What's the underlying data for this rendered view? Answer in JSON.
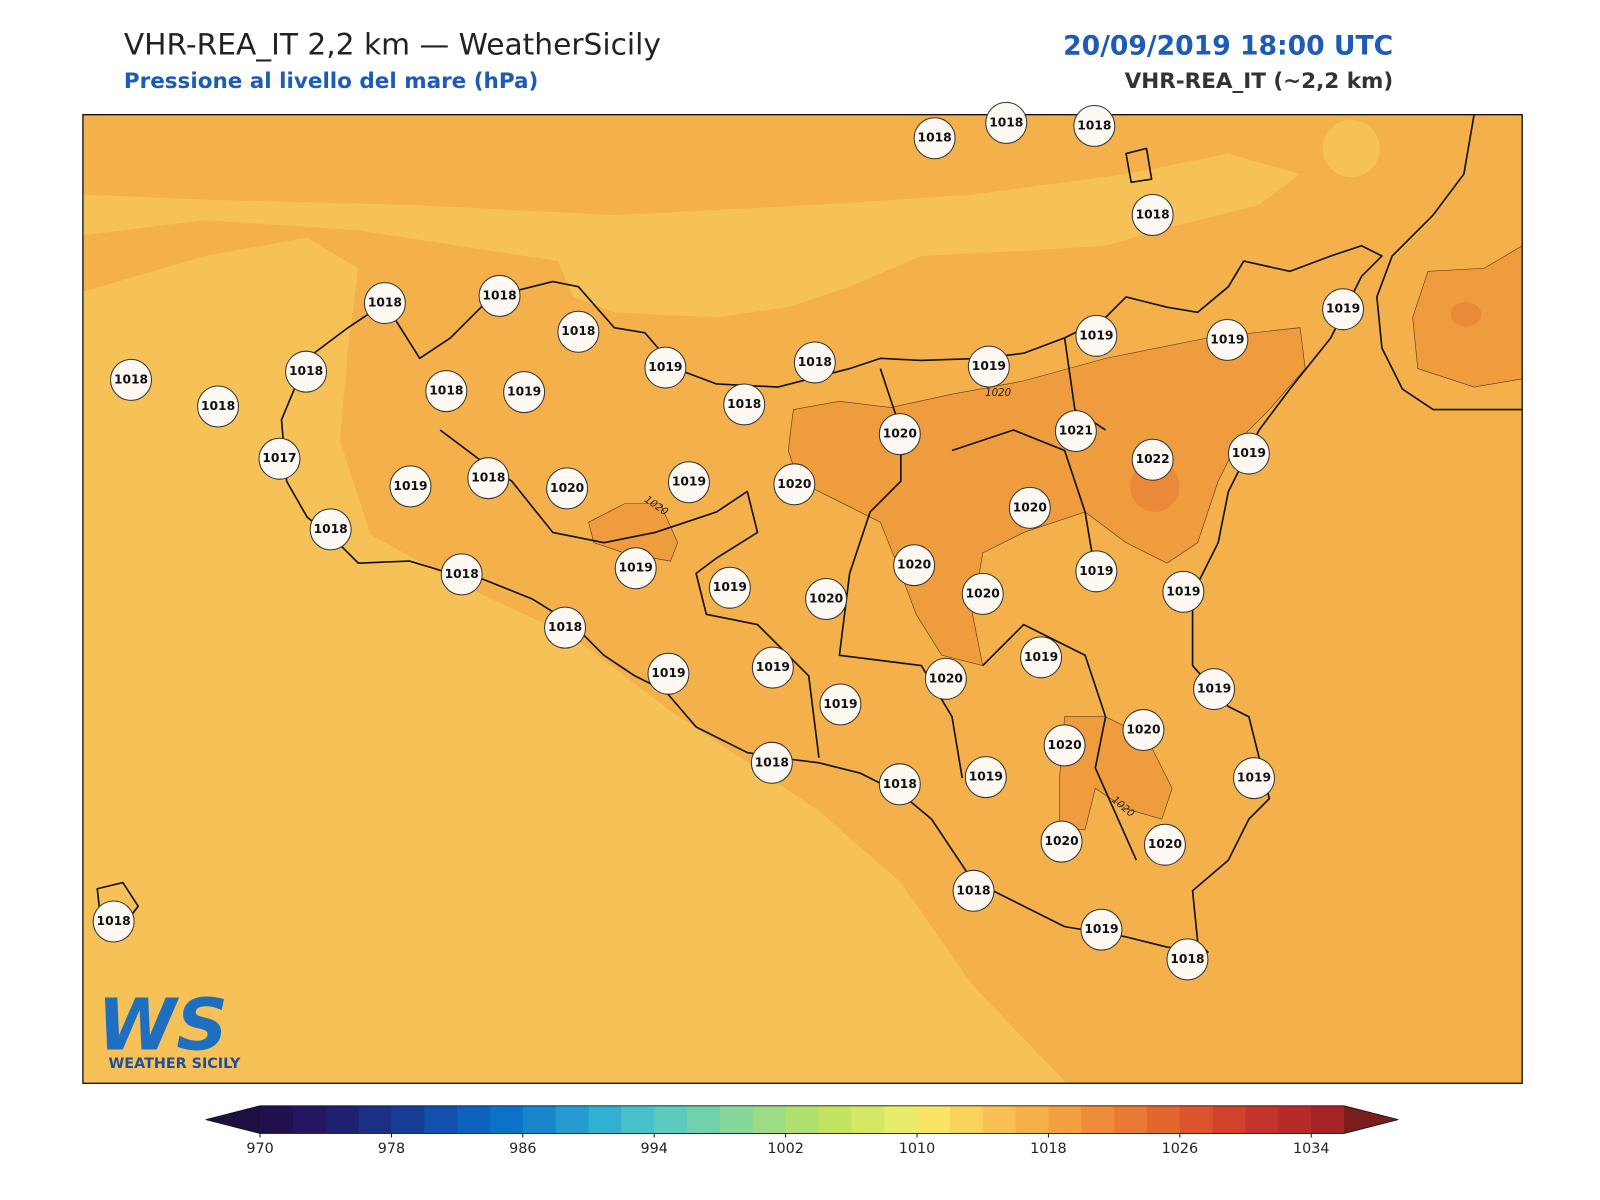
{
  "header": {
    "title": "VHR-REA_IT 2,2 km — WeatherSicily",
    "subtitle": "Pressione al livello del mare (hPa)",
    "date": "20/09/2019 18:00 UTC",
    "model": "VHR-REA_IT (~2,2 km)"
  },
  "stations": [
    1018,
    1018,
    1018,
    1018,
    1018,
    1018,
    1018,
    1018,
    1018,
    1018,
    1018,
    1019,
    1019,
    1018,
    1018,
    1019,
    1019,
    1019,
    1019,
    1017,
    1019,
    1018,
    1020,
    1019,
    1020,
    1020,
    1021,
    1022,
    1019,
    1020,
    1018,
    1018,
    1019,
    1019,
    1020,
    1020,
    1020,
    1019,
    1019,
    1018,
    1019,
    1019,
    1019,
    1019,
    1020,
    1019,
    1020,
    1020,
    1018,
    1018,
    1019,
    1019,
    1020,
    1020,
    1018,
    1019,
    1018,
    1018
  ],
  "contour_labels": [
    1020,
    1020,
    1020
  ],
  "colorbar": {
    "range": [
      970,
      1036
    ],
    "ticks": [
      970,
      978,
      986,
      994,
      1002,
      1010,
      1018,
      1026,
      1034
    ],
    "colors": [
      "#22104e",
      "#241662",
      "#1f2070",
      "#1b2f85",
      "#163d96",
      "#1150ac",
      "#0c62bd",
      "#0a73c8",
      "#1685cc",
      "#249ad0",
      "#32b0d1",
      "#48c2ca",
      "#5bcbbe",
      "#6fd2ad",
      "#86d89a",
      "#9bdc85",
      "#b0e06f",
      "#c3e460",
      "#d5e866",
      "#e7ec6b",
      "#f9e465",
      "#fad35d",
      "#f8c153",
      "#f5b04a",
      "#f29f40",
      "#ee8c39",
      "#ea7934",
      "#e4662f",
      "#dc532c",
      "#d2422b",
      "#c5342a",
      "#b72a28",
      "#a62426"
    ],
    "under": "#1e0f40",
    "over": "#7a1d1d"
  },
  "logo": {
    "mark": "WS",
    "text": "WEATHER SICILY"
  }
}
